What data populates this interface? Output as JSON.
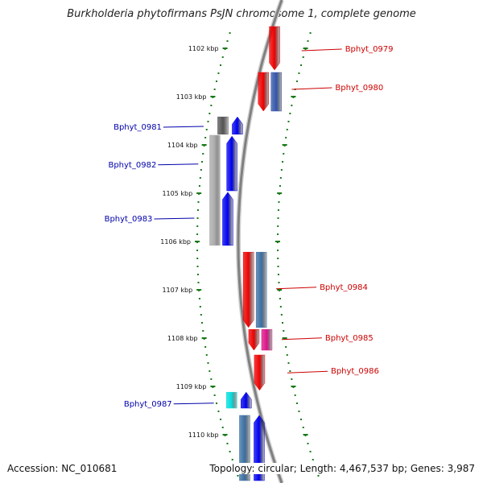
{
  "title": "Burkholderia phytofirmans PsJN chromosome 1, complete genome",
  "footer": {
    "accession": "Accession: NC_010681",
    "summary": "Topology: circular; Length: 4,467,537 bp; Genes: 3,987"
  },
  "colors": {
    "forward_label": "#cc0000",
    "reverse_label": "#0000aa",
    "tick": "#1a7a1a",
    "backbone": "#808080"
  },
  "ticks": [
    {
      "kbp": 1102,
      "label": "1102 kbp"
    },
    {
      "kbp": 1103,
      "label": "1103 kbp"
    },
    {
      "kbp": 1104,
      "label": "1104 kbp"
    },
    {
      "kbp": 1105,
      "label": "1105 kbp"
    },
    {
      "kbp": 1106,
      "label": "1106 kbp"
    },
    {
      "kbp": 1107,
      "label": "1107 kbp"
    },
    {
      "kbp": 1108,
      "label": "1108 kbp"
    },
    {
      "kbp": 1109,
      "label": "1109 kbp"
    },
    {
      "kbp": 1110,
      "label": "1110 kbp"
    }
  ],
  "genes": [
    {
      "label": "Bphyt_0979",
      "strand": "+",
      "start": 1101.55,
      "end": 1102.45,
      "color": "#ee0000"
    },
    {
      "label": "Bphyt_0980",
      "strand": "+",
      "start": 1102.5,
      "end": 1103.3,
      "color": "#ee0000"
    },
    {
      "label": "Bphyt_0981",
      "strand": "-",
      "start": 1103.42,
      "end": 1103.78,
      "color": "#0000ee"
    },
    {
      "label": "Bphyt_0982",
      "strand": "-",
      "start": 1103.82,
      "end": 1104.95,
      "color": "#0000ee"
    },
    {
      "label": "Bphyt_0983",
      "strand": "-",
      "start": 1104.98,
      "end": 1106.08,
      "color": "#0000ee"
    },
    {
      "label": "Bphyt_0984",
      "strand": "+",
      "start": 1106.22,
      "end": 1107.78,
      "color": "#ee0000"
    },
    {
      "label": "Bphyt_0985",
      "strand": "+",
      "start": 1107.82,
      "end": 1108.25,
      "color": "#ee0000"
    },
    {
      "label": "Bphyt_0986",
      "strand": "+",
      "start": 1108.35,
      "end": 1109.08,
      "color": "#ee0000"
    },
    {
      "label": "Bphyt_0987",
      "strand": "-",
      "start": 1109.12,
      "end": 1109.45,
      "color": "#0000ee"
    },
    {
      "label": "",
      "strand": "-",
      "start": 1109.6,
      "end": 1110.95,
      "color": "#0000ee"
    }
  ],
  "features": [
    {
      "strand": "+",
      "start": 1102.5,
      "end": 1103.3,
      "color": "#3355aa"
    },
    {
      "strand": "-",
      "start": 1103.42,
      "end": 1103.78,
      "color": "#555555"
    },
    {
      "strand": "-",
      "start": 1103.8,
      "end": 1106.08,
      "color": "#aaaaaa"
    },
    {
      "strand": "+",
      "start": 1106.22,
      "end": 1107.78,
      "color": "#3a6fa3"
    },
    {
      "strand": "+",
      "start": 1107.82,
      "end": 1108.25,
      "color": "#dd1188"
    },
    {
      "strand": "-",
      "start": 1109.12,
      "end": 1109.45,
      "color": "#00dddd"
    },
    {
      "strand": "-",
      "start": 1109.6,
      "end": 1110.95,
      "color": "#3a6fa3"
    }
  ],
  "labels": [
    {
      "gene": "Bphyt_0979",
      "at": 1102.05
    },
    {
      "gene": "Bphyt_0980",
      "at": 1102.85
    },
    {
      "gene": "Bphyt_0981",
      "at": 1103.65
    },
    {
      "gene": "Bphyt_0982",
      "at": 1104.43
    },
    {
      "gene": "Bphyt_0983",
      "at": 1105.55
    },
    {
      "gene": "Bphyt_0984",
      "at": 1106.98
    },
    {
      "gene": "Bphyt_0985",
      "at": 1108.03
    },
    {
      "gene": "Bphyt_0986",
      "at": 1108.72
    },
    {
      "gene": "Bphyt_0987",
      "at": 1109.38
    }
  ]
}
